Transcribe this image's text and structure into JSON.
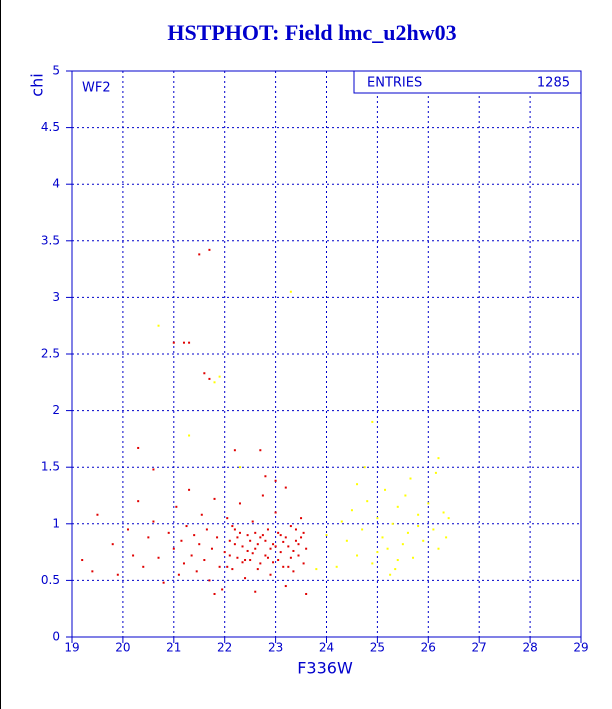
{
  "chart_data": {
    "type": "scatter",
    "title": "HSTPHOT: Field lmc_u2hw03",
    "x_label": "F336W",
    "y_label": "chi",
    "annotation": "WF2",
    "stats": {
      "label": "ENTRIES",
      "value": 1285
    },
    "xlim": [
      19,
      29
    ],
    "ylim": [
      0,
      5
    ],
    "xticks": [
      19,
      20,
      21,
      22,
      23,
      24,
      25,
      26,
      27,
      28,
      29
    ],
    "yticks": [
      0,
      0.5,
      1,
      1.5,
      2,
      2.5,
      3,
      3.5,
      4,
      4.5,
      5
    ],
    "grid": true,
    "series": [
      {
        "color": "#e00000",
        "x": [
          19.2,
          19.4,
          19.5,
          19.8,
          19.9,
          20.1,
          20.2,
          20.3,
          20.4,
          20.5,
          20.6,
          20.7,
          20.8,
          20.9,
          21.0,
          21.05,
          21.1,
          21.15,
          21.2,
          21.25,
          21.3,
          21.35,
          21.4,
          21.45,
          21.5,
          21.55,
          21.6,
          21.65,
          21.7,
          21.75,
          21.8,
          21.85,
          21.9,
          21.95,
          22.0,
          22.05,
          22.1,
          22.15,
          22.2,
          22.25,
          22.3,
          22.35,
          22.4,
          22.45,
          22.5,
          22.55,
          22.6,
          22.65,
          22.7,
          22.75,
          22.8,
          22.85,
          22.9,
          22.95,
          23.0,
          23.05,
          23.1,
          23.15,
          23.2,
          23.25,
          23.3,
          23.35,
          23.4,
          23.45,
          23.5,
          23.55,
          23.6,
          22.1,
          22.3,
          22.5,
          22.7,
          22.9,
          23.1,
          23.3,
          23.5,
          22.2,
          22.4,
          22.6,
          22.8,
          23.0,
          23.2,
          23.4,
          22.05,
          22.25,
          22.45,
          22.65,
          22.85,
          23.05,
          23.25,
          23.45,
          22.15,
          22.35,
          22.55,
          22.75,
          22.95,
          23.15,
          23.35,
          23.55,
          23.6,
          23.2,
          22.6,
          21.8,
          23.0,
          22.8,
          21.5,
          21.7,
          21.0,
          21.2,
          21.3,
          21.6,
          21.7,
          20.3,
          22.2,
          22.7,
          20.6
        ],
        "values": [
          0.68,
          0.58,
          1.08,
          0.82,
          0.55,
          0.95,
          0.72,
          1.2,
          0.62,
          0.88,
          1.02,
          0.7,
          0.48,
          0.92,
          0.78,
          1.15,
          0.55,
          0.85,
          0.65,
          0.98,
          1.3,
          0.72,
          0.9,
          0.58,
          0.82,
          1.08,
          0.68,
          0.95,
          0.5,
          0.78,
          1.22,
          0.88,
          0.62,
          0.42,
          0.75,
          1.05,
          0.85,
          0.6,
          0.95,
          0.7,
          1.18,
          0.8,
          0.52,
          0.9,
          0.68,
          1.02,
          0.78,
          0.6,
          0.88,
          1.25,
          0.72,
          0.95,
          0.55,
          0.82,
          1.1,
          0.68,
          0.9,
          0.62,
          1.32,
          0.8,
          0.98,
          0.58,
          0.85,
          0.72,
          1.05,
          0.65,
          0.78,
          0.72,
          0.92,
          0.85,
          0.65,
          0.78,
          0.75,
          0.7,
          0.88,
          0.82,
          0.68,
          0.92,
          0.85,
          0.8,
          0.88,
          0.95,
          0.62,
          0.88,
          0.76,
          0.82,
          0.7,
          0.92,
          0.62,
          0.82,
          0.98,
          0.66,
          0.74,
          0.9,
          0.66,
          0.84,
          0.76,
          0.92,
          0.38,
          0.45,
          0.4,
          0.38,
          1.38,
          1.42,
          3.38,
          3.42,
          2.6,
          2.6,
          2.6,
          2.33,
          2.28,
          1.67,
          1.65,
          1.65,
          1.48
        ]
      },
      {
        "color": "#ffff00",
        "x": [
          24.3,
          24.4,
          24.5,
          24.6,
          24.7,
          24.8,
          24.9,
          25.0,
          25.1,
          25.15,
          25.2,
          25.3,
          25.35,
          25.4,
          25.5,
          25.55,
          25.6,
          25.7,
          25.8,
          25.9,
          26.0,
          26.1,
          26.2,
          26.3,
          26.4,
          24.2,
          24.6,
          25.0,
          25.4,
          25.8,
          26.2,
          26.15,
          24.9,
          23.3,
          20.7,
          21.3,
          21.8,
          21.9,
          22.3,
          23.8,
          24.0,
          25.25,
          25.65,
          24.75,
          26.35
        ],
        "values": [
          1.02,
          0.85,
          1.12,
          0.72,
          0.95,
          1.2,
          0.65,
          1.05,
          0.88,
          1.3,
          0.78,
          1.0,
          0.6,
          1.15,
          0.82,
          1.25,
          0.92,
          0.7,
          1.08,
          0.85,
          1.18,
          0.95,
          0.78,
          1.1,
          1.05,
          0.62,
          1.35,
          0.75,
          0.68,
          0.98,
          1.58,
          1.45,
          1.9,
          3.05,
          2.75,
          1.78,
          2.25,
          2.3,
          1.5,
          0.6,
          0.9,
          0.55,
          1.4,
          1.5,
          0.88
        ]
      }
    ]
  }
}
